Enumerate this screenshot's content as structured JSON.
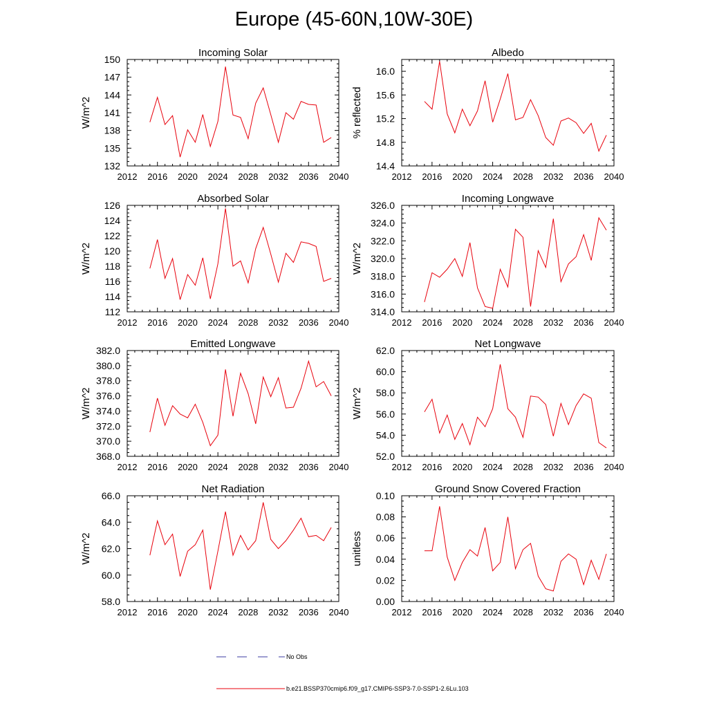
{
  "title": "Europe (45-60N,10W-30E)",
  "legend": {
    "obs_label": "No Obs",
    "obs_color": "#3a3aa0",
    "model_label": "b.e21.BSSP370cmip6.f09_g17.CMIP6-SSP3-7.0-SSP1-2.6Lu.103",
    "model_color": "#e8000b"
  },
  "chart_data": [
    {
      "type": "line",
      "title": "Incoming Solar",
      "ylabel": "W/m^2",
      "xlim": [
        2012,
        2040
      ],
      "ylim": [
        132,
        150
      ],
      "xticks": [
        "2012",
        "2016",
        "2020",
        "2024",
        "2028",
        "2032",
        "2036",
        "2040"
      ],
      "yticks": [
        "132",
        "135",
        "138",
        "141",
        "144",
        "147",
        "150"
      ],
      "x": [
        2015,
        2016,
        2017,
        2018,
        2019,
        2020,
        2021,
        2022,
        2023,
        2024,
        2025,
        2026,
        2027,
        2028,
        2029,
        2030,
        2031,
        2032,
        2033,
        2034,
        2035,
        2036,
        2037,
        2038,
        2039
      ],
      "y": [
        139.4,
        143.6,
        139.0,
        140.5,
        133.5,
        138.1,
        136.0,
        140.7,
        135.3,
        139.5,
        148.8,
        140.6,
        140.2,
        136.6,
        142.6,
        145.2,
        140.7,
        136.0,
        141.0,
        139.9,
        142.9,
        142.4,
        142.3,
        136.0,
        136.8
      ]
    },
    {
      "type": "line",
      "title": "Albedo",
      "ylabel": "% reflected",
      "xlim": [
        2012,
        2040
      ],
      "ylim": [
        14.4,
        16.2
      ],
      "xticks": [
        "2012",
        "2016",
        "2020",
        "2024",
        "2028",
        "2032",
        "2036",
        "2040"
      ],
      "yticks": [
        "14.4",
        "14.8",
        "15.2",
        "15.6",
        "16.0"
      ],
      "x": [
        2015,
        2016,
        2017,
        2018,
        2019,
        2020,
        2021,
        2022,
        2023,
        2024,
        2025,
        2026,
        2027,
        2028,
        2029,
        2030,
        2031,
        2032,
        2033,
        2034,
        2035,
        2036,
        2037,
        2038,
        2039
      ],
      "y": [
        15.49,
        15.36,
        16.17,
        15.28,
        14.96,
        15.36,
        15.08,
        15.33,
        15.84,
        15.14,
        15.53,
        15.96,
        15.18,
        15.22,
        15.52,
        15.25,
        14.88,
        14.75,
        15.16,
        15.21,
        15.13,
        14.95,
        15.12,
        14.65,
        14.92
      ]
    },
    {
      "type": "line",
      "title": "Absorbed Solar",
      "ylabel": "W/m^2",
      "xlim": [
        2012,
        2040
      ],
      "ylim": [
        112,
        126
      ],
      "xticks": [
        "2012",
        "2016",
        "2020",
        "2024",
        "2028",
        "2032",
        "2036",
        "2040"
      ],
      "yticks": [
        "112",
        "114",
        "116",
        "118",
        "120",
        "122",
        "124",
        "126"
      ],
      "x": [
        2015,
        2016,
        2017,
        2018,
        2019,
        2020,
        2021,
        2022,
        2023,
        2024,
        2025,
        2026,
        2027,
        2028,
        2029,
        2030,
        2031,
        2032,
        2033,
        2034,
        2035,
        2036,
        2037,
        2038,
        2039
      ],
      "y": [
        117.7,
        121.5,
        116.4,
        119.0,
        113.6,
        116.9,
        115.5,
        119.1,
        113.7,
        118.3,
        125.6,
        118.0,
        118.7,
        115.8,
        120.3,
        123.1,
        119.6,
        115.9,
        119.7,
        118.5,
        121.2,
        121.0,
        120.6,
        116.0,
        116.4
      ]
    },
    {
      "type": "line",
      "title": "Incoming Longwave",
      "ylabel": "W/m^2",
      "xlim": [
        2012,
        2040
      ],
      "ylim": [
        314.0,
        326.0
      ],
      "xticks": [
        "2012",
        "2016",
        "2020",
        "2024",
        "2028",
        "2032",
        "2036",
        "2040"
      ],
      "yticks": [
        "314.0",
        "316.0",
        "318.0",
        "320.0",
        "322.0",
        "324.0",
        "326.0"
      ],
      "x": [
        2015,
        2016,
        2017,
        2018,
        2019,
        2020,
        2021,
        2022,
        2023,
        2024,
        2025,
        2026,
        2027,
        2028,
        2029,
        2030,
        2031,
        2032,
        2033,
        2034,
        2035,
        2036,
        2037,
        2038,
        2039
      ],
      "y": [
        315.1,
        318.4,
        317.9,
        318.8,
        320.0,
        318.0,
        321.8,
        316.7,
        314.6,
        314.4,
        318.8,
        316.8,
        323.3,
        322.4,
        314.6,
        320.9,
        319.0,
        324.5,
        317.4,
        319.4,
        320.2,
        322.7,
        319.8,
        324.6,
        323.2
      ]
    },
    {
      "type": "line",
      "title": "Emitted Longwave",
      "ylabel": "W/m^2",
      "xlim": [
        2012,
        2040
      ],
      "ylim": [
        368.0,
        382.0
      ],
      "xticks": [
        "2012",
        "2016",
        "2020",
        "2024",
        "2028",
        "2032",
        "2036",
        "2040"
      ],
      "yticks": [
        "368.0",
        "370.0",
        "372.0",
        "374.0",
        "376.0",
        "378.0",
        "380.0",
        "382.0"
      ],
      "x": [
        2015,
        2016,
        2017,
        2018,
        2019,
        2020,
        2021,
        2022,
        2023,
        2024,
        2025,
        2026,
        2027,
        2028,
        2029,
        2030,
        2031,
        2032,
        2033,
        2034,
        2035,
        2036,
        2037,
        2038,
        2039
      ],
      "y": [
        371.2,
        375.7,
        372.1,
        374.7,
        373.6,
        373.1,
        374.9,
        372.5,
        369.4,
        370.8,
        379.5,
        373.3,
        379.0,
        376.3,
        372.3,
        378.5,
        375.9,
        378.4,
        374.4,
        374.5,
        377.0,
        380.6,
        377.2,
        377.9,
        376.0
      ]
    },
    {
      "type": "line",
      "title": "Net Longwave",
      "ylabel": "W/m^2",
      "xlim": [
        2012,
        2040
      ],
      "ylim": [
        52.0,
        62.0
      ],
      "xticks": [
        "2012",
        "2016",
        "2020",
        "2024",
        "2028",
        "2032",
        "2036",
        "2040"
      ],
      "yticks": [
        "52.0",
        "54.0",
        "56.0",
        "58.0",
        "60.0",
        "62.0"
      ],
      "x": [
        2015,
        2016,
        2017,
        2018,
        2019,
        2020,
        2021,
        2022,
        2023,
        2024,
        2025,
        2026,
        2027,
        2028,
        2029,
        2030,
        2031,
        2032,
        2033,
        2034,
        2035,
        2036,
        2037,
        2038,
        2039
      ],
      "y": [
        56.2,
        57.4,
        54.2,
        55.9,
        53.6,
        55.1,
        53.1,
        55.7,
        54.8,
        56.5,
        60.7,
        56.5,
        55.7,
        53.8,
        57.7,
        57.6,
        56.9,
        53.9,
        57.0,
        55.0,
        56.8,
        57.9,
        57.5,
        53.3,
        52.8
      ]
    },
    {
      "type": "line",
      "title": "Net Radiation",
      "ylabel": "W/m^2",
      "xlim": [
        2012,
        2040
      ],
      "ylim": [
        58.0,
        66.0
      ],
      "xticks": [
        "2012",
        "2016",
        "2020",
        "2024",
        "2028",
        "2032",
        "2036",
        "2040"
      ],
      "yticks": [
        "58.0",
        "60.0",
        "62.0",
        "64.0",
        "66.0"
      ],
      "x": [
        2015,
        2016,
        2017,
        2018,
        2019,
        2020,
        2021,
        2022,
        2023,
        2024,
        2025,
        2026,
        2027,
        2028,
        2029,
        2030,
        2031,
        2032,
        2033,
        2034,
        2035,
        2036,
        2037,
        2038,
        2039
      ],
      "y": [
        61.5,
        64.1,
        62.3,
        63.1,
        59.9,
        61.8,
        62.3,
        63.4,
        58.9,
        61.8,
        64.8,
        61.5,
        63.0,
        61.9,
        62.6,
        65.5,
        62.7,
        62.0,
        62.6,
        63.4,
        64.3,
        62.9,
        63.0,
        62.6,
        63.6
      ]
    },
    {
      "type": "line",
      "title": "Ground Snow Covered Fraction",
      "ylabel": "unitless",
      "xlim": [
        2012,
        2040
      ],
      "ylim": [
        0.0,
        0.1
      ],
      "xticks": [
        "2012",
        "2016",
        "2020",
        "2024",
        "2028",
        "2032",
        "2036",
        "2040"
      ],
      "yticks": [
        "0.00",
        "0.02",
        "0.04",
        "0.06",
        "0.08",
        "0.10"
      ],
      "x": [
        2015,
        2016,
        2017,
        2018,
        2019,
        2020,
        2021,
        2022,
        2023,
        2024,
        2025,
        2026,
        2027,
        2028,
        2029,
        2030,
        2031,
        2032,
        2033,
        2034,
        2035,
        2036,
        2037,
        2038,
        2039
      ],
      "y": [
        0.048,
        0.048,
        0.09,
        0.042,
        0.02,
        0.037,
        0.049,
        0.043,
        0.07,
        0.029,
        0.037,
        0.08,
        0.031,
        0.049,
        0.055,
        0.024,
        0.012,
        0.01,
        0.038,
        0.045,
        0.04,
        0.016,
        0.039,
        0.021,
        0.045
      ]
    }
  ]
}
